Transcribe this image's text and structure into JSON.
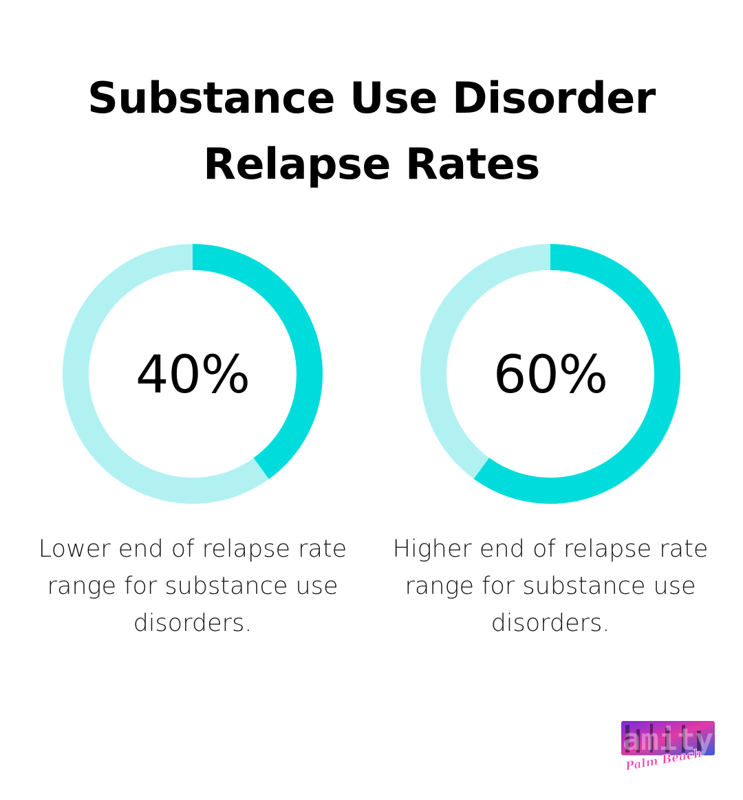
{
  "title": {
    "line1": "Substance Use Disorder",
    "line2": "Relapse Rates"
  },
  "chart_data": [
    {
      "type": "pie",
      "variant": "donut",
      "value": 40,
      "max": 100,
      "label": "40%",
      "caption_lines": [
        "Lower end of relapse rate",
        "range for substance use",
        "disorders."
      ]
    },
    {
      "type": "pie",
      "variant": "donut",
      "value": 60,
      "max": 100,
      "label": "60%",
      "caption_lines": [
        "Higher end of relapse rate",
        "range for substance use",
        "disorders."
      ]
    }
  ],
  "colors": {
    "ring_fill": "#00dcdc",
    "ring_track": "#b2f1f1"
  },
  "logo": {
    "text": "amity",
    "script_text": "Palm Beach",
    "icon": "amity-palm-beach-logo"
  }
}
